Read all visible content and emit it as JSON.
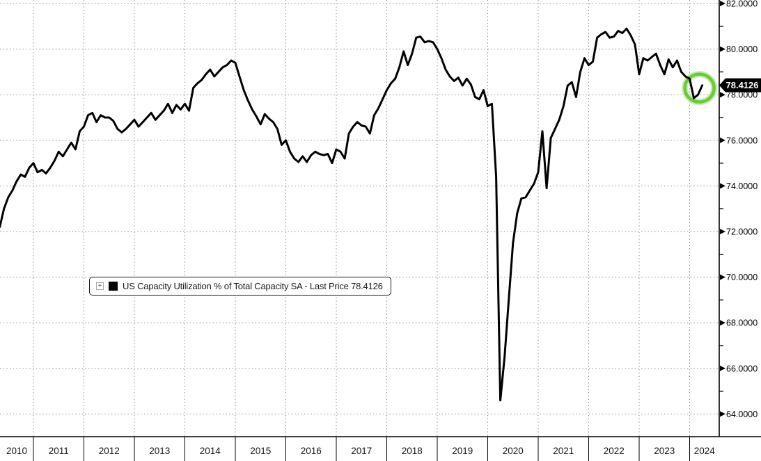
{
  "chart_data": {
    "type": "line",
    "title": "US Capacity Utilization % of Total Capacity SA",
    "series_name": "US Capacity Utilization % of Total Capacity SA",
    "last_price": "78.4126",
    "frequency": "monthly",
    "x_start": "2010-05",
    "x_end": "2024-04",
    "years": [
      "2010",
      "2011",
      "2012",
      "2013",
      "2014",
      "2015",
      "2016",
      "2017",
      "2018",
      "2019",
      "2020",
      "2021",
      "2022",
      "2023",
      "2024"
    ],
    "y_ticks": [
      82,
      80,
      78,
      76,
      74,
      72,
      70,
      68,
      66,
      64
    ],
    "y_tick_labels": [
      "82.0000",
      "80.0000",
      "78.0000",
      "76.0000",
      "74.0000",
      "72.0000",
      "70.0000",
      "68.0000",
      "66.0000",
      "64.0000"
    ],
    "ylim": [
      63.0,
      82.2
    ],
    "grid": "dotted",
    "legend_position": "inside-left",
    "line_color": "#000000",
    "grid_color": "#8f8f8f",
    "highlight_ring_color": "#6cc93a",
    "highlight_glow_color": "#b9e896",
    "badge_bg_color": "#000000",
    "badge_text_color": "#ffffff",
    "values": [
      72.2,
      73.0,
      73.5,
      73.8,
      74.2,
      74.5,
      74.4,
      74.8,
      75.0,
      74.6,
      74.7,
      74.55,
      74.8,
      75.1,
      75.5,
      75.3,
      75.6,
      75.9,
      75.6,
      76.4,
      76.6,
      77.1,
      77.2,
      76.8,
      77.1,
      77.0,
      77.0,
      76.85,
      76.5,
      76.35,
      76.5,
      76.7,
      76.9,
      76.6,
      76.8,
      77.0,
      77.2,
      76.9,
      77.1,
      77.3,
      77.6,
      77.2,
      77.55,
      77.35,
      77.6,
      77.3,
      78.3,
      78.5,
      78.65,
      78.9,
      79.1,
      78.8,
      79.0,
      79.2,
      79.3,
      79.5,
      79.4,
      78.8,
      78.2,
      77.75,
      77.35,
      77.05,
      76.7,
      77.15,
      76.95,
      76.8,
      76.5,
      75.8,
      76.0,
      75.5,
      75.2,
      75.05,
      75.3,
      75.05,
      75.35,
      75.5,
      75.4,
      75.35,
      75.4,
      75.0,
      75.6,
      75.5,
      75.2,
      76.3,
      76.6,
      76.8,
      76.65,
      76.6,
      76.3,
      77.1,
      77.4,
      77.8,
      78.2,
      78.5,
      78.7,
      79.2,
      79.9,
      79.3,
      79.8,
      80.5,
      80.55,
      80.3,
      80.35,
      80.3,
      80.0,
      79.6,
      79.1,
      78.8,
      78.6,
      78.75,
      78.4,
      78.7,
      78.45,
      77.9,
      77.8,
      78.2,
      77.5,
      77.6,
      74.4,
      64.6,
      66.5,
      69.0,
      71.5,
      72.8,
      73.45,
      73.5,
      73.8,
      74.1,
      74.6,
      76.4,
      73.9,
      76.1,
      76.5,
      76.9,
      77.5,
      78.4,
      78.55,
      77.9,
      79.0,
      79.6,
      79.3,
      79.45,
      80.5,
      80.65,
      80.75,
      80.5,
      80.55,
      80.8,
      80.7,
      80.9,
      80.6,
      80.2,
      78.9,
      79.6,
      79.5,
      79.65,
      79.8,
      79.3,
      78.9,
      79.55,
      79.2,
      79.5,
      79.0,
      78.8,
      78.7,
      77.85,
      78.0,
      78.4126
    ]
  },
  "legend": {
    "expand_glyph": "+",
    "label": "US Capacity Utilization % of Total Capacity SA - Last Price 78.4126"
  },
  "badge": {
    "value": "78.4126"
  }
}
